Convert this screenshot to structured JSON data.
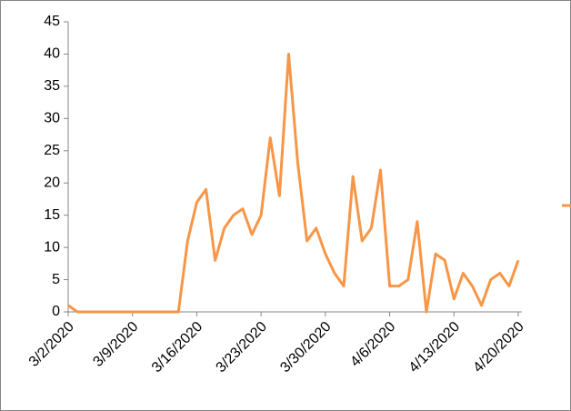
{
  "chart_data": {
    "type": "line",
    "categories": [
      "3/2/2020",
      null,
      null,
      null,
      null,
      null,
      null,
      "3/9/2020",
      null,
      null,
      null,
      null,
      null,
      null,
      "3/16/2020",
      null,
      null,
      null,
      null,
      null,
      null,
      "3/23/2020",
      null,
      null,
      null,
      null,
      null,
      null,
      "3/30/2020",
      null,
      null,
      null,
      null,
      null,
      null,
      "4/6/2020",
      null,
      null,
      null,
      null,
      null,
      null,
      "4/13/2020",
      null,
      null,
      null,
      null,
      null,
      null,
      "4/20/2020"
    ],
    "series": [
      {
        "color": "#f79646",
        "values": [
          1,
          0,
          0,
          0,
          0,
          0,
          0,
          0,
          0,
          0,
          0,
          0,
          0,
          11,
          17,
          19,
          8,
          13,
          15,
          16,
          12,
          15,
          27,
          18,
          40,
          23,
          11,
          13,
          9,
          6,
          4,
          21,
          11,
          13,
          22,
          4,
          4,
          5,
          14,
          0,
          9,
          8,
          2,
          6,
          4,
          1,
          5,
          6,
          4,
          8
        ]
      }
    ],
    "ylim": [
      0,
      45
    ],
    "yticks": [
      0,
      5,
      10,
      15,
      20,
      25,
      30,
      35,
      40,
      45
    ],
    "grid": false
  }
}
